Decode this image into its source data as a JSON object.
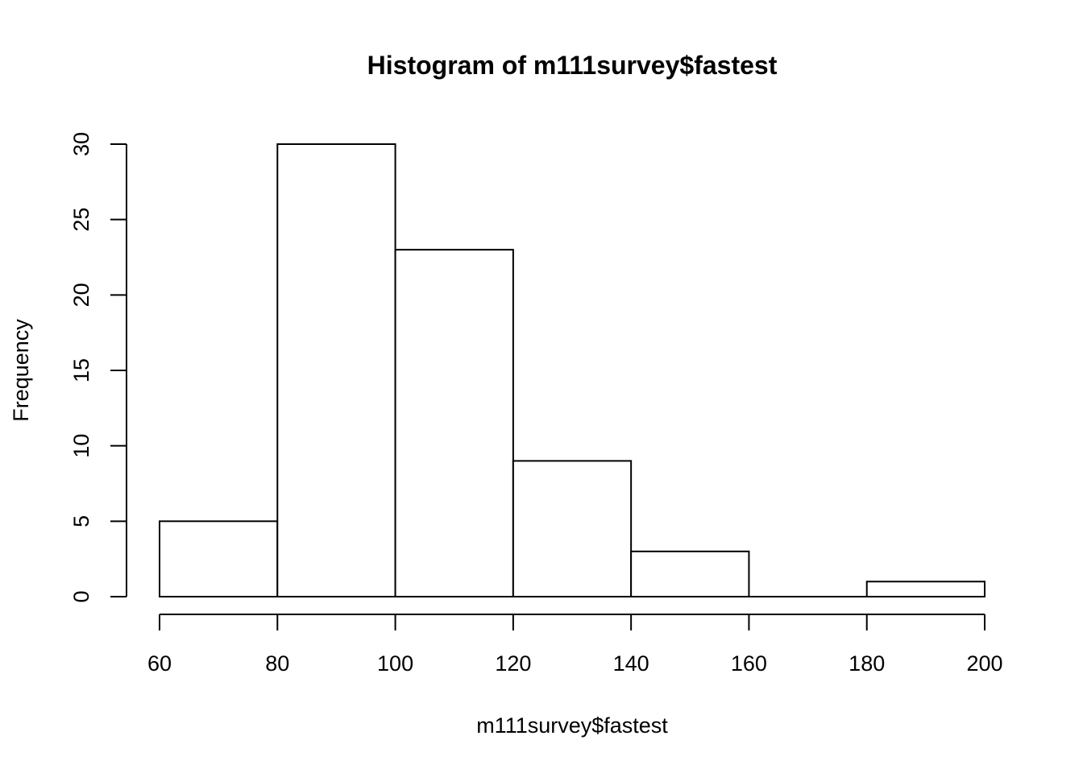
{
  "chart_data": {
    "type": "bar",
    "title": "Histogram of m111survey$fastest",
    "xlabel": "m111survey$fastest",
    "ylabel": "Frequency",
    "bins": [
      {
        "start": 60,
        "end": 80,
        "count": 5
      },
      {
        "start": 80,
        "end": 100,
        "count": 30
      },
      {
        "start": 100,
        "end": 120,
        "count": 23
      },
      {
        "start": 120,
        "end": 140,
        "count": 9
      },
      {
        "start": 140,
        "end": 160,
        "count": 3
      },
      {
        "start": 160,
        "end": 180,
        "count": 0
      },
      {
        "start": 180,
        "end": 200,
        "count": 1
      }
    ],
    "x_ticks": [
      60,
      80,
      100,
      120,
      140,
      160,
      180,
      200
    ],
    "y_ticks": [
      0,
      5,
      10,
      15,
      20,
      25,
      30
    ],
    "xlim": [
      60,
      200
    ],
    "ylim": [
      0,
      30
    ],
    "grid": false,
    "bar_fill": "#ffffff",
    "bar_stroke": "#000000"
  }
}
